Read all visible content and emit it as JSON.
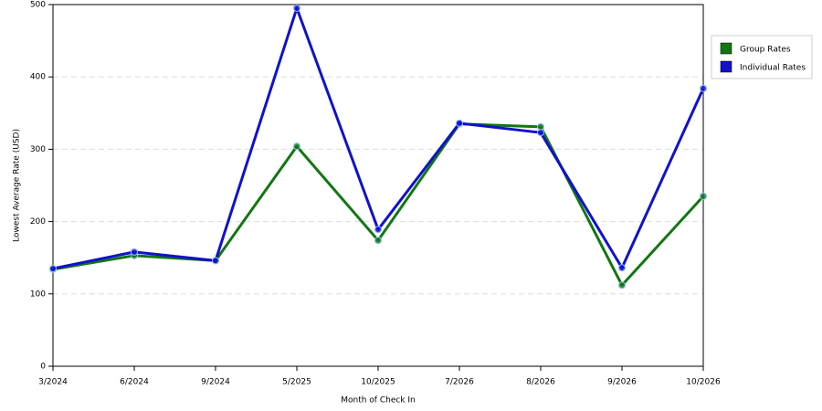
{
  "chart_data": {
    "type": "line",
    "x_label": "Month of Check In",
    "y_label": "Lowest Average Rate (USD)",
    "categories": [
      "3/2024",
      "6/2024",
      "9/2024",
      "5/2025",
      "10/2025",
      "7/2026",
      "8/2026",
      "9/2026",
      "10/2026"
    ],
    "series": [
      {
        "name": "Group Rates",
        "color": "#117711",
        "values": [
          134,
          153,
          146,
          304,
          174,
          335,
          331,
          112,
          235
        ]
      },
      {
        "name": "Individual Rates",
        "color": "#1111cc",
        "values": [
          135,
          158,
          146,
          495,
          189,
          336,
          323,
          136,
          384
        ]
      }
    ],
    "ylim": [
      0,
      500
    ],
    "yticks": [
      0,
      100,
      200,
      300,
      400,
      500
    ],
    "grid": true,
    "legend": "right"
  }
}
